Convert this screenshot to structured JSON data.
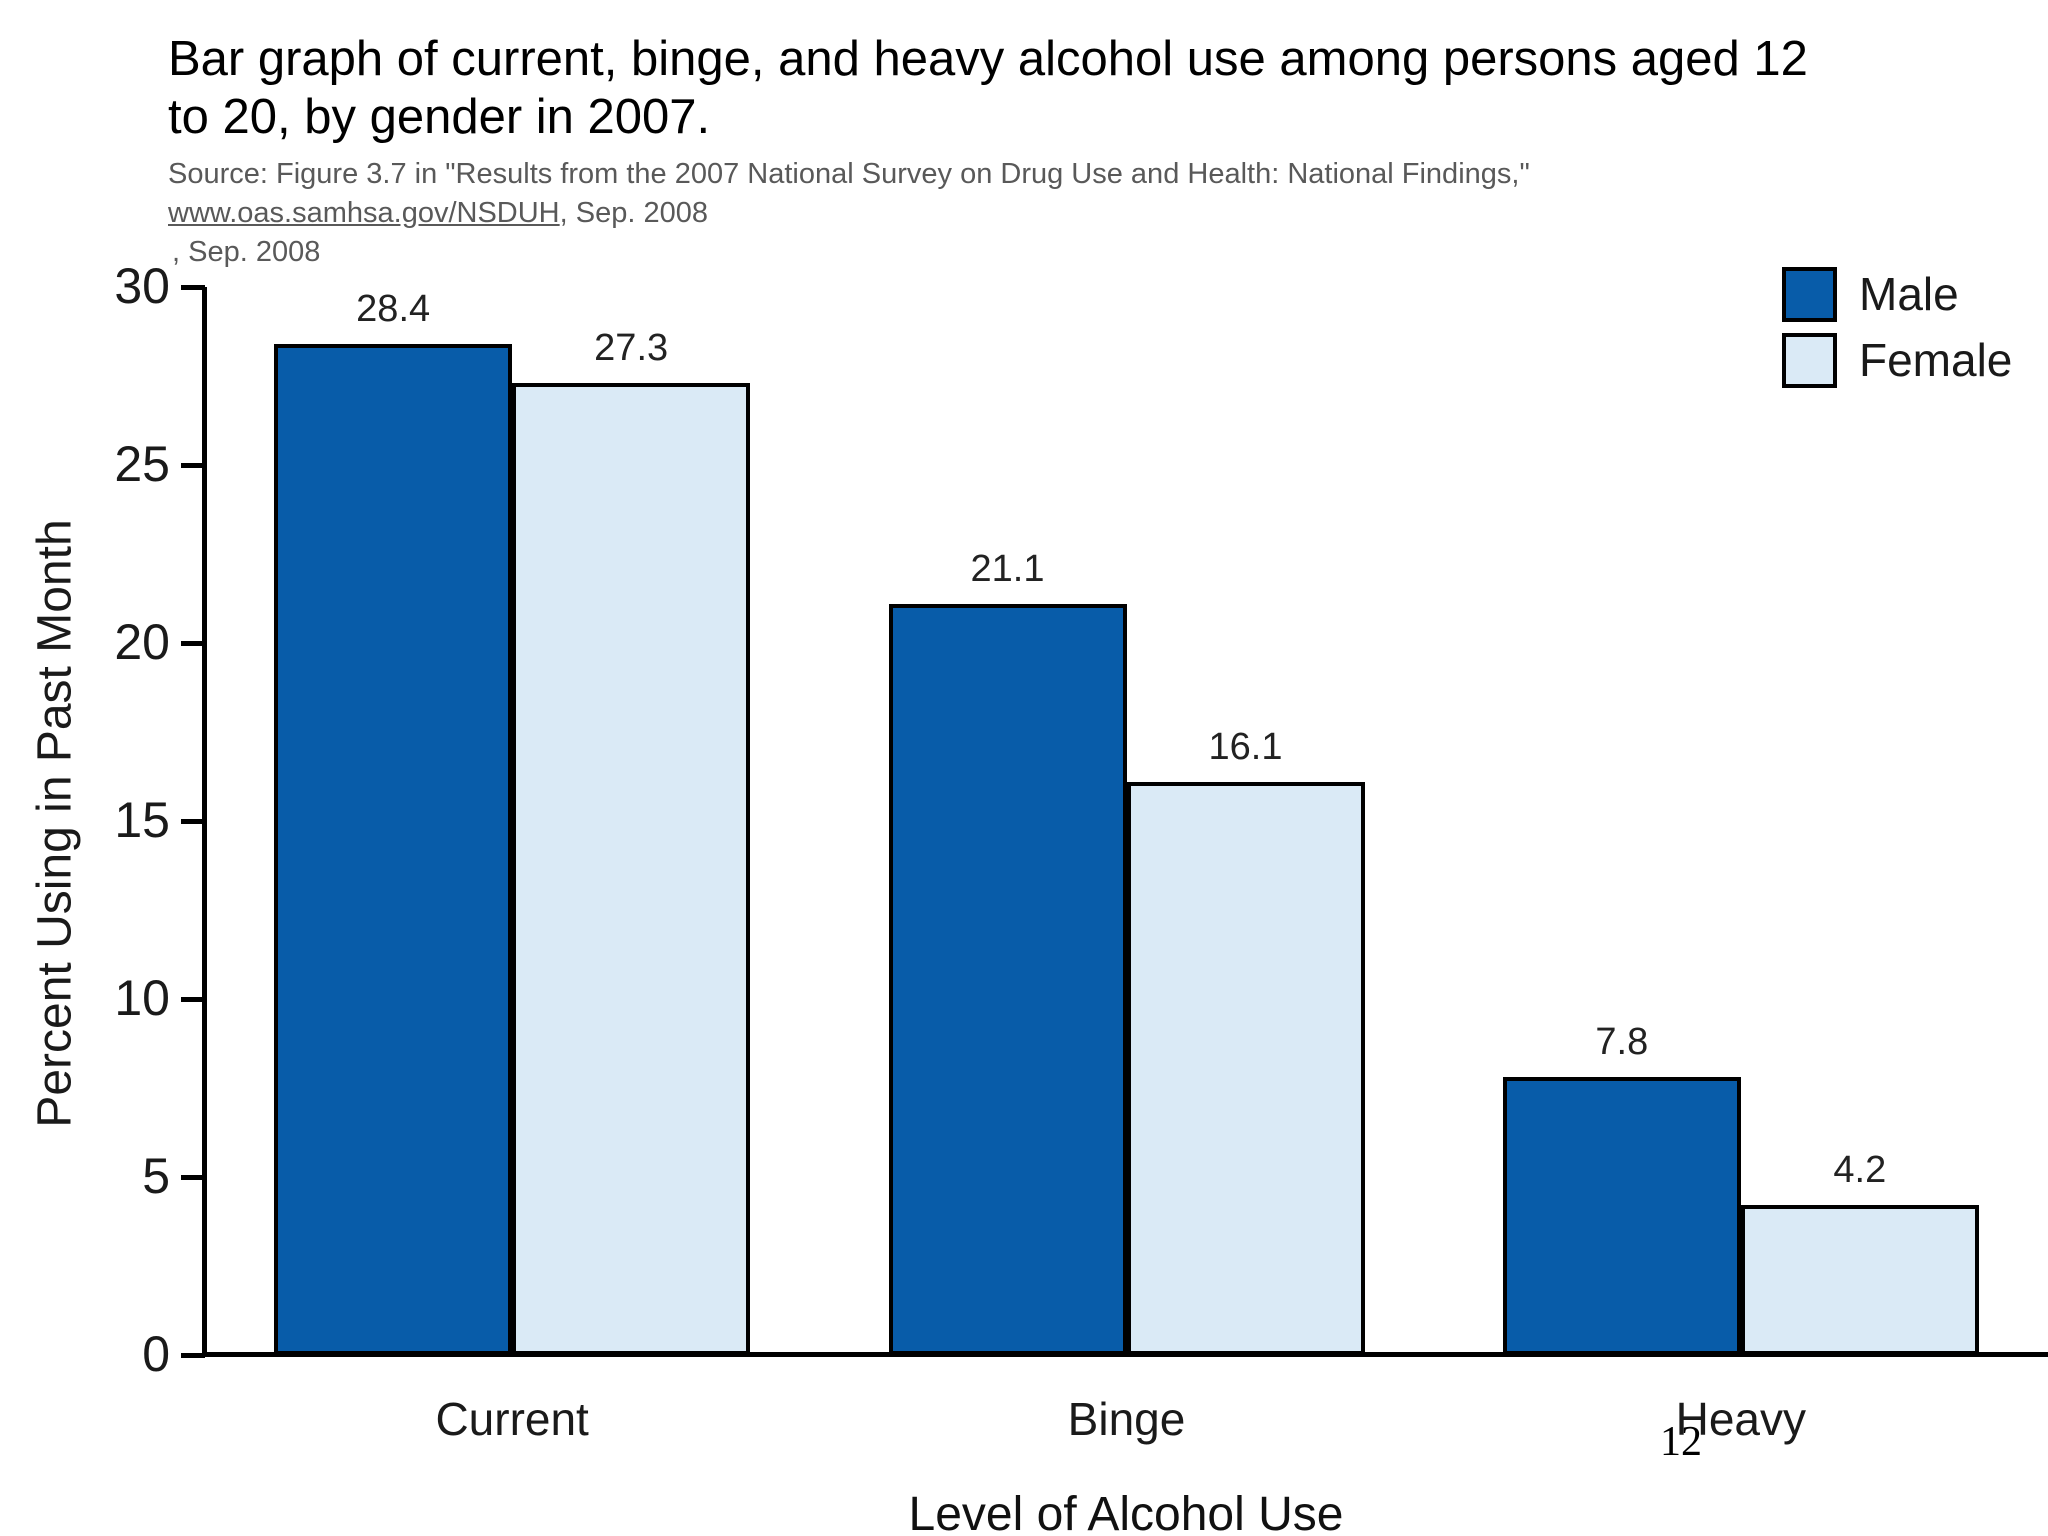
{
  "page": {
    "background": "#ffffff",
    "page_number": "12"
  },
  "title": {
    "line1": "Bar graph of current, binge, and heavy alcohol use among persons aged 12",
    "line2": "to 20, by gender in 2007."
  },
  "source": {
    "line1": "Source: Figure 3.7 in \"Results from the 2007 National Survey on Drug Use and Health: National Findings,\"",
    "link": "www.oas.samhsa.gov/NSDUH",
    "after_link": ", Sep. 2008",
    "line3": ", Sep. 2008"
  },
  "chart_data": {
    "type": "bar",
    "title": "",
    "categories": [
      "Current",
      "Binge",
      "Heavy"
    ],
    "series": [
      {
        "name": "Male",
        "color": "#085CA9",
        "values": [
          28.4,
          21.1,
          7.8
        ]
      },
      {
        "name": "Female",
        "color": "#DAEAF6",
        "values": [
          27.3,
          16.1,
          4.2
        ]
      }
    ],
    "xlabel": "Level of Alcohol Use",
    "ylabel": "Percent Using in Past Month",
    "ylim": [
      0,
      30
    ],
    "yticks": [
      0,
      5,
      10,
      15,
      20,
      25,
      30
    ],
    "grid": false,
    "legend_position": "top-right",
    "bar_outline": "#000000",
    "axis_color": "#000000"
  }
}
